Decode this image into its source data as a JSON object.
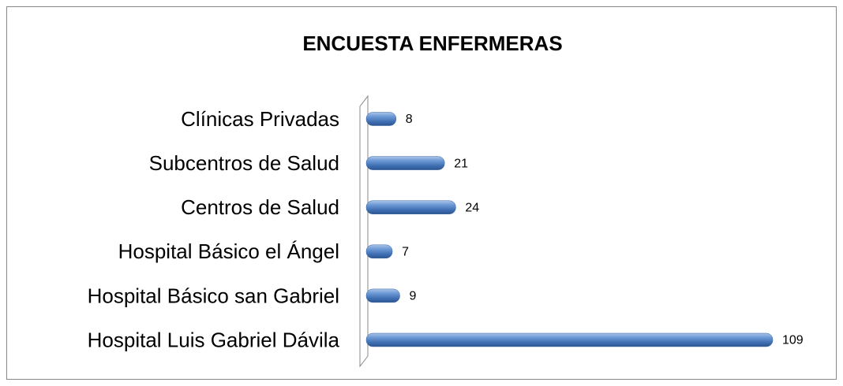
{
  "chart_data": {
    "type": "bar",
    "orientation": "horizontal",
    "title": "ENCUESTA ENFERMERAS",
    "categories": [
      "Clínicas Privadas",
      "Subcentros de Salud",
      "Centros de Salud",
      "Hospital Básico el Ángel",
      "Hospital Básico san Gabriel",
      "Hospital Luis Gabriel Dávila"
    ],
    "values": [
      8,
      21,
      24,
      7,
      9,
      109
    ],
    "color": "#4f81bd"
  }
}
